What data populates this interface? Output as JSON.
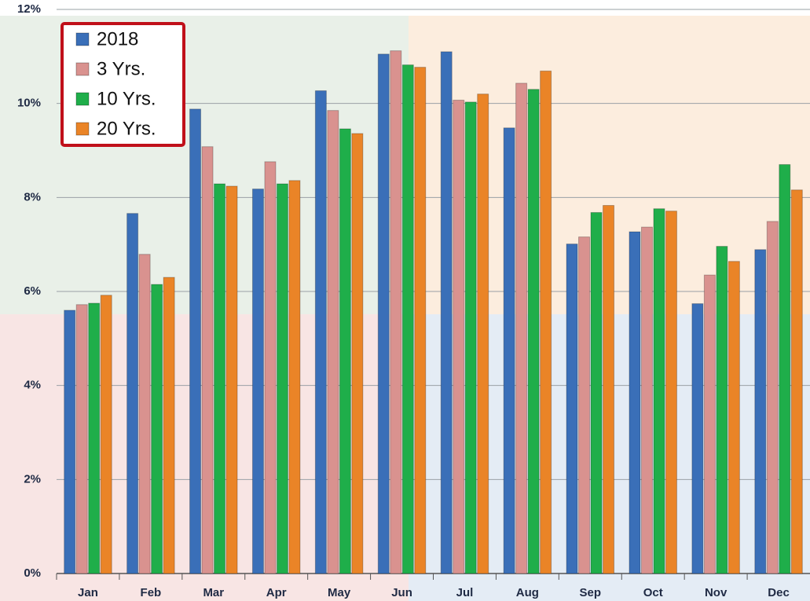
{
  "chart_data": {
    "type": "bar",
    "categories": [
      "Jan",
      "Feb",
      "Mar",
      "Apr",
      "May",
      "Jun",
      "Jul",
      "Aug",
      "Sep",
      "Oct",
      "Nov",
      "Dec"
    ],
    "series": [
      {
        "name": "2018",
        "color": "#3a6fb8",
        "values": [
          5.6,
          7.66,
          9.88,
          8.18,
          10.27,
          11.05,
          11.1,
          9.48,
          7.01,
          7.27,
          5.74,
          6.89
        ]
      },
      {
        "name": "3 Yrs.",
        "color": "#d9928f",
        "values": [
          5.72,
          6.79,
          9.08,
          8.76,
          9.85,
          11.12,
          10.07,
          10.43,
          7.16,
          7.37,
          6.35,
          7.49
        ]
      },
      {
        "name": "10 Yrs.",
        "color": "#1fae4a",
        "values": [
          5.75,
          6.15,
          8.29,
          8.29,
          9.46,
          10.82,
          10.03,
          10.3,
          7.68,
          7.76,
          6.96,
          8.7
        ]
      },
      {
        "name": "20 Yrs.",
        "color": "#ea8427",
        "values": [
          5.92,
          6.3,
          8.24,
          8.36,
          9.36,
          10.77,
          10.2,
          10.69,
          7.83,
          7.71,
          6.64,
          8.16
        ]
      }
    ],
    "ylim": [
      0,
      12
    ],
    "yticks": [
      {
        "value": 0,
        "label": "0%"
      },
      {
        "value": 2,
        "label": "2%"
      },
      {
        "value": 4,
        "label": "4%"
      },
      {
        "value": 6,
        "label": "6%"
      },
      {
        "value": 8,
        "label": "8%"
      },
      {
        "value": 10,
        "label": "10%"
      },
      {
        "value": 12,
        "label": "12%"
      }
    ],
    "grid": true,
    "legend": "upper left"
  }
}
